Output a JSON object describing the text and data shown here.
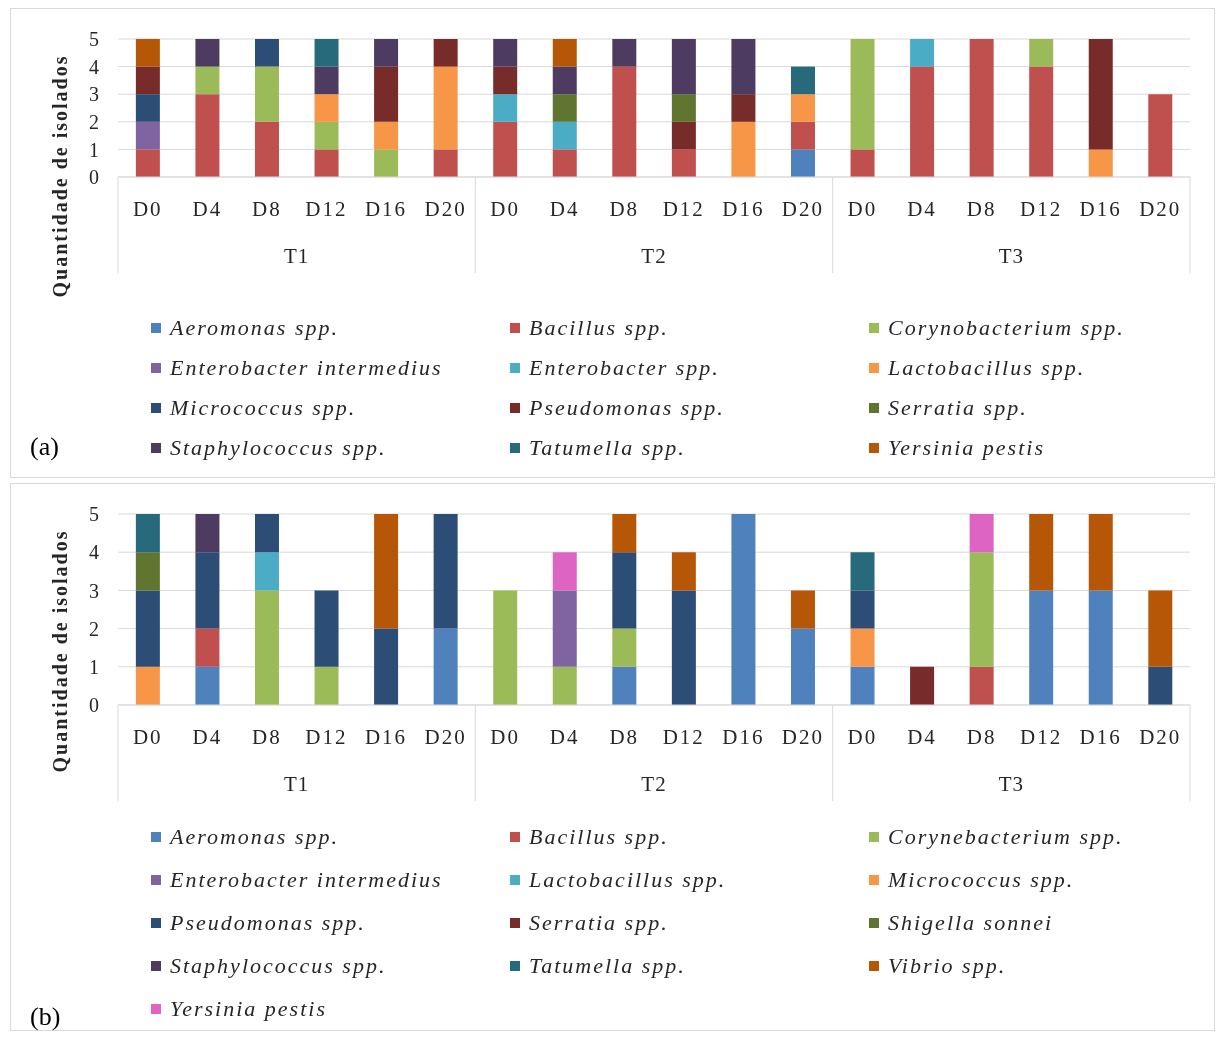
{
  "chart_data": [
    {
      "type": "bar",
      "title": "(a)",
      "ylabel": "Quantidade de isolados",
      "categories": [
        "D0",
        "D4",
        "D8",
        "D12",
        "D16",
        "D20",
        "D0",
        "D4",
        "D8",
        "D12",
        "D16",
        "D20",
        "D0",
        "D4",
        "D8",
        "D12",
        "D16",
        "D20"
      ],
      "annotations": [
        "T1",
        "T2",
        "T3"
      ],
      "stacked": true,
      "ylim": [
        0,
        5
      ],
      "yticks": [
        0,
        1,
        2,
        3,
        4,
        5
      ],
      "grid": "y",
      "legend": "bottom",
      "series": [
        {
          "name": "Aeromonas spp.",
          "color": "#4f81bd",
          "values": [
            null,
            null,
            null,
            null,
            null,
            null,
            null,
            null,
            null,
            null,
            null,
            1,
            null,
            null,
            null,
            null,
            null,
            null
          ]
        },
        {
          "name": "Bacillus spp.",
          "color": "#c0504d",
          "values": [
            1,
            3,
            2,
            1,
            null,
            1,
            2,
            1,
            4,
            1,
            null,
            1,
            1,
            4,
            5,
            4,
            null,
            3
          ]
        },
        {
          "name": "Corynobacterium spp.",
          "color": "#9bbb59",
          "values": [
            null,
            1,
            2,
            1,
            1,
            null,
            null,
            null,
            null,
            null,
            null,
            null,
            4,
            null,
            null,
            1,
            null,
            null
          ]
        },
        {
          "name": "Enterobacter intermedius",
          "color": "#8064a2",
          "values": [
            1,
            null,
            null,
            null,
            null,
            null,
            null,
            null,
            null,
            null,
            null,
            null,
            null,
            null,
            null,
            null,
            null,
            null
          ]
        },
        {
          "name": "Enterobacter spp.",
          "color": "#4bacc6",
          "values": [
            null,
            null,
            null,
            null,
            null,
            null,
            1,
            1,
            null,
            null,
            null,
            null,
            null,
            1,
            null,
            null,
            null,
            null
          ]
        },
        {
          "name": "Lactobacillus spp.",
          "color": "#f79646",
          "values": [
            null,
            null,
            null,
            1,
            1,
            3,
            null,
            null,
            null,
            null,
            2,
            1,
            null,
            null,
            null,
            null,
            1,
            null
          ]
        },
        {
          "name": "Micrococcus spp.",
          "color": "#2c4d75",
          "values": [
            1,
            null,
            1,
            null,
            null,
            null,
            null,
            null,
            null,
            null,
            null,
            null,
            null,
            null,
            null,
            null,
            null,
            null
          ]
        },
        {
          "name": "Pseudomonas spp.",
          "color": "#772c2a",
          "values": [
            1,
            null,
            null,
            null,
            2,
            1,
            1,
            null,
            null,
            1,
            1,
            null,
            null,
            null,
            null,
            null,
            4,
            null
          ]
        },
        {
          "name": "Serratia spp.",
          "color": "#5f7530",
          "values": [
            null,
            null,
            null,
            null,
            null,
            null,
            null,
            1,
            null,
            1,
            null,
            null,
            null,
            null,
            null,
            null,
            null,
            null
          ]
        },
        {
          "name": "Staphylococcus spp.",
          "color": "#4d3b62",
          "values": [
            null,
            1,
            null,
            1,
            1,
            null,
            1,
            1,
            1,
            2,
            2,
            null,
            null,
            null,
            null,
            null,
            null,
            null
          ]
        },
        {
          "name": "Tatumella spp.",
          "color": "#276a7c",
          "values": [
            null,
            null,
            null,
            1,
            null,
            null,
            null,
            null,
            null,
            null,
            null,
            1,
            null,
            null,
            null,
            null,
            null,
            null
          ]
        },
        {
          "name": "Yersinia pestis",
          "color": "#b65708",
          "values": [
            1,
            null,
            null,
            null,
            null,
            null,
            null,
            1,
            null,
            null,
            null,
            null,
            null,
            null,
            null,
            null,
            null,
            null
          ]
        }
      ]
    },
    {
      "type": "bar",
      "title": "(b)",
      "ylabel": "Quantidade de isolados",
      "categories": [
        "D0",
        "D4",
        "D8",
        "D12",
        "D16",
        "D20",
        "D0",
        "D4",
        "D8",
        "D12",
        "D16",
        "D20",
        "D0",
        "D4",
        "D8",
        "D12",
        "D16",
        "D20"
      ],
      "annotations": [
        "T1",
        "T2",
        "T3"
      ],
      "stacked": true,
      "ylim": [
        0,
        5
      ],
      "yticks": [
        0,
        1,
        2,
        3,
        4,
        5
      ],
      "grid": "y",
      "legend": "bottom",
      "series": [
        {
          "name": "Aeromonas spp.",
          "color": "#4f81bd",
          "values": [
            null,
            1,
            null,
            null,
            null,
            2,
            null,
            null,
            1,
            null,
            5,
            2,
            1,
            null,
            null,
            3,
            3,
            null
          ]
        },
        {
          "name": "Bacillus spp.",
          "color": "#c0504d",
          "values": [
            null,
            1,
            null,
            null,
            null,
            null,
            null,
            null,
            null,
            null,
            null,
            null,
            null,
            null,
            1,
            null,
            null,
            null
          ]
        },
        {
          "name": "Corynebacterium spp.",
          "color": "#9bbb59",
          "values": [
            null,
            null,
            3,
            1,
            null,
            null,
            3,
            1,
            1,
            null,
            null,
            null,
            null,
            null,
            3,
            null,
            null,
            null
          ]
        },
        {
          "name": "Enterobacter intermedius",
          "color": "#8064a2",
          "values": [
            null,
            null,
            null,
            null,
            null,
            null,
            null,
            2,
            null,
            null,
            null,
            null,
            null,
            null,
            null,
            null,
            null,
            null
          ]
        },
        {
          "name": "Lactobacillus spp.",
          "color": "#4bacc6",
          "values": [
            null,
            null,
            1,
            null,
            null,
            null,
            null,
            null,
            null,
            null,
            null,
            null,
            null,
            null,
            null,
            null,
            null,
            null
          ]
        },
        {
          "name": "Micrococcus spp.",
          "color": "#f79646",
          "values": [
            1,
            null,
            null,
            null,
            null,
            null,
            null,
            null,
            null,
            null,
            null,
            null,
            1,
            null,
            null,
            null,
            null,
            null
          ]
        },
        {
          "name": "Pseudomonas spp.",
          "color": "#2c4d75",
          "values": [
            2,
            2,
            1,
            2,
            2,
            3,
            null,
            null,
            2,
            3,
            null,
            null,
            1,
            null,
            null,
            null,
            null,
            1
          ]
        },
        {
          "name": "Serratia spp.",
          "color": "#772c2a",
          "values": [
            null,
            null,
            null,
            null,
            null,
            null,
            null,
            null,
            null,
            null,
            null,
            null,
            null,
            1,
            null,
            null,
            null,
            null
          ]
        },
        {
          "name": "Shigella sonnei",
          "color": "#5f7530",
          "values": [
            1,
            null,
            null,
            null,
            null,
            null,
            null,
            null,
            null,
            null,
            null,
            null,
            null,
            null,
            null,
            null,
            null,
            null
          ]
        },
        {
          "name": "Staphylococcus spp.",
          "color": "#4d3b62",
          "values": [
            null,
            1,
            null,
            null,
            null,
            null,
            null,
            null,
            null,
            null,
            null,
            null,
            null,
            null,
            null,
            null,
            null,
            null
          ]
        },
        {
          "name": "Tatumella spp.",
          "color": "#276a7c",
          "values": [
            1,
            null,
            null,
            null,
            null,
            null,
            null,
            null,
            null,
            null,
            null,
            null,
            1,
            null,
            null,
            null,
            null,
            null
          ]
        },
        {
          "name": "Vibrio spp.",
          "color": "#b65708",
          "values": [
            null,
            null,
            null,
            null,
            3,
            null,
            null,
            null,
            1,
            1,
            null,
            1,
            null,
            null,
            null,
            2,
            2,
            2
          ]
        },
        {
          "name": "Yersinia pestis",
          "color": "#dd64c3",
          "values": [
            null,
            null,
            null,
            null,
            null,
            null,
            null,
            1,
            null,
            null,
            null,
            null,
            null,
            null,
            1,
            null,
            null,
            null
          ]
        }
      ]
    }
  ]
}
